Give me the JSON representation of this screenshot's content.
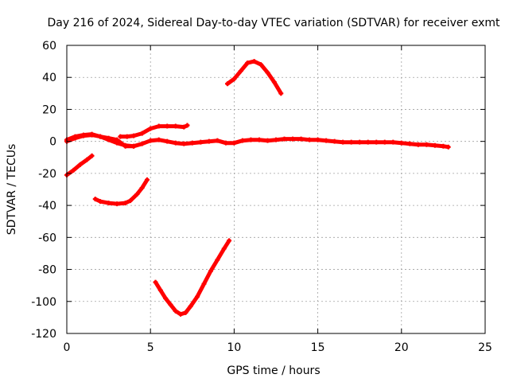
{
  "chart_data": {
    "type": "scatter",
    "title": "Day 216 of 2024, Sidereal Day-to-day VTEC variation (SDTVAR) for receiver exmt",
    "xlabel": "GPS time / hours",
    "ylabel": "SDTVAR / TECUs",
    "xlim": [
      0,
      25
    ],
    "ylim": [
      -120,
      60
    ],
    "xticks": [
      0,
      5,
      10,
      15,
      20,
      25
    ],
    "yticks": [
      -120,
      -100,
      -80,
      -60,
      -40,
      -20,
      0,
      20,
      40,
      60
    ],
    "grid": true,
    "marker_color": "#ff0000",
    "series": [
      {
        "name": "main-trace",
        "points": [
          [
            0,
            0
          ],
          [
            0.5,
            2
          ],
          [
            1,
            3.5
          ],
          [
            1.5,
            4
          ],
          [
            2,
            3
          ],
          [
            2.5,
            2
          ],
          [
            3,
            1
          ],
          [
            3.5,
            -3
          ],
          [
            4,
            -3
          ],
          [
            4.5,
            -1.5
          ],
          [
            5,
            0.5
          ],
          [
            5.5,
            1
          ],
          [
            6,
            0
          ],
          [
            6.5,
            -1
          ],
          [
            7,
            -1.5
          ],
          [
            7.5,
            -1
          ],
          [
            8,
            -0.5
          ],
          [
            8.5,
            0
          ],
          [
            9,
            0.5
          ],
          [
            9.5,
            -1
          ],
          [
            10,
            -1
          ],
          [
            10.5,
            0.5
          ],
          [
            11,
            1
          ],
          [
            11.5,
            1
          ],
          [
            12,
            0.5
          ],
          [
            12.5,
            1
          ],
          [
            13,
            1.5
          ],
          [
            13.5,
            1.5
          ],
          [
            14,
            1.5
          ],
          [
            14.5,
            1
          ],
          [
            15,
            1
          ],
          [
            15.5,
            0.5
          ],
          [
            16,
            0
          ],
          [
            16.5,
            -0.5
          ],
          [
            17,
            -0.5
          ],
          [
            17.5,
            -0.5
          ],
          [
            18,
            -0.5
          ],
          [
            18.5,
            -0.5
          ],
          [
            19,
            -0.5
          ],
          [
            19.5,
            -0.5
          ],
          [
            20,
            -1
          ],
          [
            20.5,
            -1.5
          ],
          [
            21,
            -2
          ],
          [
            21.5,
            -2
          ],
          [
            22,
            -2.5
          ],
          [
            22.5,
            -3
          ],
          [
            22.8,
            -3.5
          ]
        ]
      },
      {
        "name": "early-arc",
        "points": [
          [
            0,
            1
          ],
          [
            0.5,
            3
          ],
          [
            1,
            4
          ],
          [
            1.5,
            4.5
          ],
          [
            2,
            3
          ],
          [
            2.5,
            1
          ],
          [
            3,
            -1
          ],
          [
            3.5,
            -2.5
          ],
          [
            4,
            -3
          ]
        ]
      },
      {
        "name": "rising-arc",
        "points": [
          [
            3.2,
            3
          ],
          [
            3.6,
            3
          ],
          [
            4,
            3.5
          ],
          [
            4.5,
            5
          ],
          [
            5,
            8
          ],
          [
            5.5,
            9.5
          ],
          [
            6,
            9.5
          ],
          [
            6.5,
            9.5
          ],
          [
            7,
            9
          ],
          [
            7.2,
            10
          ]
        ]
      },
      {
        "name": "negative-start",
        "points": [
          [
            0,
            -21
          ],
          [
            0.4,
            -18
          ],
          [
            0.8,
            -14.5
          ],
          [
            1.2,
            -11.5
          ],
          [
            1.5,
            -9
          ]
        ]
      },
      {
        "name": "dip-40",
        "points": [
          [
            1.7,
            -36
          ],
          [
            2,
            -37.5
          ],
          [
            2.5,
            -38.5
          ],
          [
            3,
            -39
          ],
          [
            3.5,
            -38.5
          ],
          [
            3.8,
            -37
          ],
          [
            4.2,
            -33
          ],
          [
            4.5,
            -29
          ],
          [
            4.8,
            -24
          ]
        ]
      },
      {
        "name": "peak-50",
        "points": [
          [
            9.6,
            36
          ],
          [
            10,
            39
          ],
          [
            10.4,
            44
          ],
          [
            10.8,
            49
          ],
          [
            11.2,
            50
          ],
          [
            11.6,
            48
          ],
          [
            12,
            43
          ],
          [
            12.4,
            37
          ],
          [
            12.8,
            30
          ]
        ]
      },
      {
        "name": "trough-108",
        "points": [
          [
            5.3,
            -88
          ],
          [
            5.6,
            -93
          ],
          [
            5.9,
            -98
          ],
          [
            6.2,
            -102
          ],
          [
            6.5,
            -106
          ],
          [
            6.8,
            -108
          ],
          [
            7.1,
            -107
          ],
          [
            7.4,
            -103
          ],
          [
            7.8,
            -97
          ],
          [
            8.2,
            -89
          ],
          [
            8.6,
            -81
          ],
          [
            9,
            -74
          ],
          [
            9.4,
            -67
          ],
          [
            9.7,
            -62
          ]
        ]
      }
    ]
  }
}
